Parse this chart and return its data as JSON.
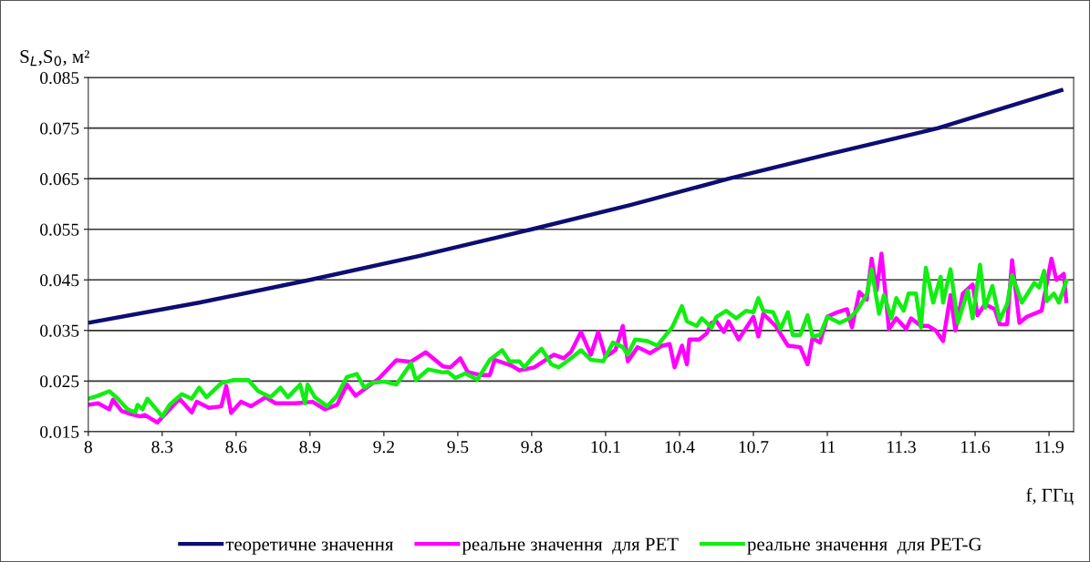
{
  "chart_data": {
    "type": "line",
    "xlabel": "f, ГГц",
    "ylabel": "S$_{L}$,S$_{0}$, м²",
    "xlim": [
      8,
      12
    ],
    "ylim": [
      0.015,
      0.085
    ],
    "xticks": [
      8,
      8.3,
      8.6,
      8.9,
      9.2,
      9.5,
      9.8,
      10.1,
      10.4,
      10.7,
      11,
      11.3,
      11.6,
      11.9
    ],
    "yticks": [
      0.015,
      0.025,
      0.035,
      0.045,
      0.055,
      0.065,
      0.075,
      0.085
    ],
    "grid": "y",
    "legend": "bottom",
    "marker": "none",
    "line_style": "solid",
    "series": [
      {
        "name": "теоретичне значення",
        "color": "#0d0d73",
        "x": [
          8,
          8.45,
          8.9,
          9.35,
          9.8,
          10.2,
          10.6,
          11.0,
          11.45,
          11.95
        ],
        "values": [
          0.0365,
          0.0405,
          0.045,
          0.0498,
          0.055,
          0.0598,
          0.065,
          0.0698,
          0.075,
          0.0825
        ]
      },
      {
        "name": "реальне значення  для PET",
        "color": "#ff00ff",
        "x": [
          8.0,
          8.04,
          8.085,
          8.1,
          8.135,
          8.17,
          8.21,
          8.23,
          8.28,
          8.33,
          8.37,
          8.42,
          8.44,
          8.49,
          8.54,
          8.56,
          8.58,
          8.62,
          8.66,
          8.72,
          8.76,
          8.84,
          8.91,
          8.96,
          9.01,
          9.05,
          9.085,
          9.13,
          9.18,
          9.25,
          9.31,
          9.37,
          9.44,
          9.47,
          9.51,
          9.54,
          9.59,
          9.63,
          9.65,
          9.72,
          9.75,
          9.81,
          9.89,
          9.93,
          9.96,
          10.0,
          10.04,
          10.07,
          10.1,
          10.14,
          10.17,
          10.19,
          10.23,
          10.28,
          10.33,
          10.36,
          10.38,
          10.41,
          10.43,
          10.44,
          10.48,
          10.51,
          10.53,
          10.55,
          10.58,
          10.6,
          10.64,
          10.7,
          10.72,
          10.74,
          10.79,
          10.84,
          10.89,
          10.92,
          10.94,
          10.97,
          11.0,
          11.04,
          11.08,
          11.1,
          11.13,
          11.16,
          11.18,
          11.2,
          11.22,
          11.25,
          11.28,
          11.32,
          11.34,
          11.38,
          11.41,
          11.44,
          11.47,
          11.5,
          11.52,
          11.55,
          11.59,
          11.61,
          11.64,
          11.68,
          11.7,
          11.73,
          11.75,
          11.78,
          11.81,
          11.87,
          11.91,
          11.93,
          11.96,
          11.97
        ],
        "values": [
          0.0203,
          0.0206,
          0.0194,
          0.0213,
          0.0191,
          0.0185,
          0.018,
          0.0183,
          0.0168,
          0.0194,
          0.0215,
          0.0188,
          0.0209,
          0.0197,
          0.02,
          0.024,
          0.0187,
          0.0209,
          0.02,
          0.0218,
          0.0206,
          0.0206,
          0.0209,
          0.0194,
          0.0203,
          0.0243,
          0.0221,
          0.0237,
          0.0255,
          0.0291,
          0.0288,
          0.0307,
          0.0279,
          0.0277,
          0.0295,
          0.0268,
          0.0262,
          0.0262,
          0.0292,
          0.028,
          0.0271,
          0.0277,
          0.0302,
          0.0295,
          0.0308,
          0.0347,
          0.0302,
          0.0347,
          0.0298,
          0.0311,
          0.0359,
          0.0289,
          0.0317,
          0.0305,
          0.032,
          0.0323,
          0.0277,
          0.032,
          0.0283,
          0.0332,
          0.0332,
          0.0344,
          0.0365,
          0.0368,
          0.0347,
          0.0368,
          0.0332,
          0.0377,
          0.0338,
          0.0383,
          0.0359,
          0.032,
          0.0317,
          0.0283,
          0.0335,
          0.0326,
          0.0377,
          0.0386,
          0.0392,
          0.0356,
          0.0426,
          0.0411,
          0.0492,
          0.0429,
          0.0502,
          0.0353,
          0.0374,
          0.0353,
          0.0374,
          0.0359,
          0.0359,
          0.035,
          0.0329,
          0.042,
          0.035,
          0.0423,
          0.0441,
          0.038,
          0.0402,
          0.0392,
          0.0362,
          0.0362,
          0.0489,
          0.0365,
          0.0377,
          0.0389,
          0.0492,
          0.045,
          0.0462,
          0.0408
        ]
      },
      {
        "name": "реальне значення  для PET-G",
        "color": "#11ee11",
        "x": [
          8.0,
          8.04,
          8.085,
          8.12,
          8.16,
          8.19,
          8.2,
          8.22,
          8.24,
          8.3,
          8.33,
          8.38,
          8.42,
          8.45,
          8.48,
          8.54,
          8.59,
          8.65,
          8.69,
          8.74,
          8.78,
          8.81,
          8.86,
          8.88,
          8.89,
          8.92,
          8.97,
          9.01,
          9.05,
          9.09,
          9.12,
          9.15,
          9.2,
          9.25,
          9.31,
          9.33,
          9.38,
          9.44,
          9.46,
          9.49,
          9.53,
          9.58,
          9.63,
          9.68,
          9.71,
          9.75,
          9.77,
          9.8,
          9.84,
          9.88,
          9.91,
          9.96,
          10.0,
          10.04,
          10.09,
          10.13,
          10.17,
          10.19,
          10.22,
          10.27,
          10.31,
          10.37,
          10.41,
          10.43,
          10.47,
          10.49,
          10.53,
          10.55,
          10.59,
          10.63,
          10.67,
          10.7,
          10.72,
          10.74,
          10.78,
          10.81,
          10.84,
          10.86,
          10.89,
          10.92,
          10.94,
          10.97,
          11.0,
          11.05,
          11.09,
          11.12,
          11.16,
          11.18,
          11.21,
          11.23,
          11.26,
          11.28,
          11.31,
          11.33,
          11.36,
          11.38,
          11.4,
          11.43,
          11.46,
          11.47,
          11.5,
          11.53,
          11.57,
          11.59,
          11.62,
          11.64,
          11.67,
          11.7,
          11.73,
          11.75,
          11.79,
          11.84,
          11.86,
          11.88,
          11.89,
          11.92,
          11.94,
          11.97
        ],
        "values": [
          0.0215,
          0.0221,
          0.023,
          0.0215,
          0.0194,
          0.0188,
          0.0203,
          0.0194,
          0.0215,
          0.018,
          0.0203,
          0.0224,
          0.0215,
          0.0237,
          0.0218,
          0.0246,
          0.0252,
          0.0252,
          0.023,
          0.0218,
          0.0237,
          0.0218,
          0.0243,
          0.0206,
          0.0243,
          0.0218,
          0.02,
          0.0221,
          0.0258,
          0.0264,
          0.0237,
          0.0246,
          0.0249,
          0.0243,
          0.0285,
          0.0252,
          0.0273,
          0.0267,
          0.0268,
          0.0256,
          0.0265,
          0.0253,
          0.0292,
          0.0311,
          0.0289,
          0.0289,
          0.0277,
          0.0295,
          0.0314,
          0.0283,
          0.0277,
          0.0295,
          0.0311,
          0.0292,
          0.0289,
          0.0326,
          0.0317,
          0.0302,
          0.0332,
          0.0329,
          0.032,
          0.0356,
          0.0398,
          0.0368,
          0.0359,
          0.0374,
          0.0356,
          0.0377,
          0.0389,
          0.0374,
          0.0389,
          0.0386,
          0.0414,
          0.0389,
          0.0386,
          0.0353,
          0.0386,
          0.0341,
          0.0341,
          0.038,
          0.0338,
          0.0341,
          0.0377,
          0.0365,
          0.0374,
          0.0389,
          0.042,
          0.0471,
          0.0383,
          0.042,
          0.0374,
          0.0414,
          0.0389,
          0.0423,
          0.0423,
          0.0356,
          0.0474,
          0.0405,
          0.0456,
          0.0405,
          0.0471,
          0.0365,
          0.0429,
          0.0374,
          0.048,
          0.0395,
          0.0438,
          0.0371,
          0.0402,
          0.0459,
          0.0405,
          0.0444,
          0.0435,
          0.0468,
          0.0408,
          0.0423,
          0.0405,
          0.0447
        ]
      }
    ]
  }
}
